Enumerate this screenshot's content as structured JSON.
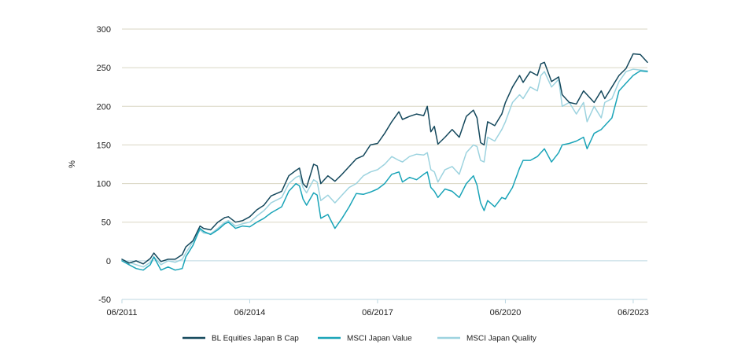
{
  "chart_data": {
    "type": "line",
    "ylabel": "%",
    "xlabel": "",
    "title": "",
    "ylim": [
      -50,
      300
    ],
    "yticks": [
      -50,
      0,
      50,
      100,
      150,
      200,
      250,
      300
    ],
    "x_range": [
      "2011-06",
      "2023-10"
    ],
    "xticks": [
      {
        "date": "2011-06",
        "label": "06/2011"
      },
      {
        "date": "2014-06",
        "label": "06/2014"
      },
      {
        "date": "2017-06",
        "label": "06/2017"
      },
      {
        "date": "2020-06",
        "label": "06/2020"
      },
      {
        "date": "2023-06",
        "label": "06/2023"
      }
    ],
    "grid": true,
    "legend_position": "bottom",
    "series": [
      {
        "name": "BL Equities Japan B Cap",
        "color": "#14485c",
        "points": [
          [
            "2011-06",
            2
          ],
          [
            "2011-08",
            -3
          ],
          [
            "2011-10",
            0
          ],
          [
            "2011-12",
            -4
          ],
          [
            "2012-02",
            3
          ],
          [
            "2012-03",
            10
          ],
          [
            "2012-05",
            -1
          ],
          [
            "2012-07",
            2
          ],
          [
            "2012-09",
            2
          ],
          [
            "2012-11",
            8
          ],
          [
            "2012-12",
            18
          ],
          [
            "2013-02",
            26
          ],
          [
            "2013-04",
            45
          ],
          [
            "2013-05",
            42
          ],
          [
            "2013-07",
            40
          ],
          [
            "2013-09",
            50
          ],
          [
            "2013-11",
            56
          ],
          [
            "2013-12",
            57
          ],
          [
            "2014-02",
            50
          ],
          [
            "2014-04",
            52
          ],
          [
            "2014-06",
            57
          ],
          [
            "2014-08",
            66
          ],
          [
            "2014-10",
            72
          ],
          [
            "2014-12",
            84
          ],
          [
            "2015-03",
            90
          ],
          [
            "2015-05",
            110
          ],
          [
            "2015-07",
            117
          ],
          [
            "2015-08",
            120
          ],
          [
            "2015-09",
            100
          ],
          [
            "2015-10",
            95
          ],
          [
            "2015-12",
            125
          ],
          [
            "2016-01",
            123
          ],
          [
            "2016-02",
            100
          ],
          [
            "2016-04",
            110
          ],
          [
            "2016-06",
            103
          ],
          [
            "2016-08",
            112
          ],
          [
            "2016-10",
            122
          ],
          [
            "2016-12",
            132
          ],
          [
            "2017-02",
            136
          ],
          [
            "2017-04",
            150
          ],
          [
            "2017-06",
            152
          ],
          [
            "2017-08",
            165
          ],
          [
            "2017-10",
            180
          ],
          [
            "2017-12",
            193
          ],
          [
            "2018-01",
            183
          ],
          [
            "2018-03",
            187
          ],
          [
            "2018-05",
            190
          ],
          [
            "2018-07",
            188
          ],
          [
            "2018-08",
            200
          ],
          [
            "2018-09",
            167
          ],
          [
            "2018-10",
            174
          ],
          [
            "2018-11",
            151
          ],
          [
            "2019-01",
            160
          ],
          [
            "2019-03",
            170
          ],
          [
            "2019-05",
            160
          ],
          [
            "2019-07",
            187
          ],
          [
            "2019-09",
            195
          ],
          [
            "2019-10",
            185
          ],
          [
            "2019-11",
            153
          ],
          [
            "2019-12",
            150
          ],
          [
            "2020-01",
            180
          ],
          [
            "2020-03",
            175
          ],
          [
            "2020-05",
            190
          ],
          [
            "2020-06",
            205
          ],
          [
            "2020-08",
            225
          ],
          [
            "2020-10",
            240
          ],
          [
            "2020-11",
            231
          ],
          [
            "2021-01",
            245
          ],
          [
            "2021-03",
            240
          ],
          [
            "2021-04",
            255
          ],
          [
            "2021-05",
            257
          ],
          [
            "2021-07",
            232
          ],
          [
            "2021-09",
            238
          ],
          [
            "2021-10",
            215
          ],
          [
            "2021-12",
            205
          ],
          [
            "2022-02",
            203
          ],
          [
            "2022-04",
            220
          ],
          [
            "2022-05",
            215
          ],
          [
            "2022-07",
            205
          ],
          [
            "2022-09",
            220
          ],
          [
            "2022-10",
            210
          ],
          [
            "2022-12",
            225
          ],
          [
            "2023-02",
            240
          ],
          [
            "2023-04",
            249
          ],
          [
            "2023-06",
            268
          ],
          [
            "2023-08",
            267
          ],
          [
            "2023-10",
            257
          ]
        ]
      },
      {
        "name": "MSCI Japan Value",
        "color": "#1aa4b8",
        "points": [
          [
            "2011-06",
            0
          ],
          [
            "2011-08",
            -5
          ],
          [
            "2011-10",
            -10
          ],
          [
            "2011-12",
            -12
          ],
          [
            "2012-02",
            -5
          ],
          [
            "2012-03",
            5
          ],
          [
            "2012-05",
            -12
          ],
          [
            "2012-07",
            -8
          ],
          [
            "2012-09",
            -12
          ],
          [
            "2012-11",
            -10
          ],
          [
            "2012-12",
            5
          ],
          [
            "2013-02",
            20
          ],
          [
            "2013-04",
            42
          ],
          [
            "2013-05",
            38
          ],
          [
            "2013-07",
            34
          ],
          [
            "2013-09",
            40
          ],
          [
            "2013-11",
            48
          ],
          [
            "2013-12",
            50
          ],
          [
            "2014-02",
            42
          ],
          [
            "2014-04",
            45
          ],
          [
            "2014-06",
            44
          ],
          [
            "2014-08",
            50
          ],
          [
            "2014-10",
            55
          ],
          [
            "2014-12",
            62
          ],
          [
            "2015-03",
            70
          ],
          [
            "2015-05",
            90
          ],
          [
            "2015-07",
            100
          ],
          [
            "2015-08",
            97
          ],
          [
            "2015-09",
            80
          ],
          [
            "2015-10",
            72
          ],
          [
            "2015-12",
            88
          ],
          [
            "2016-01",
            85
          ],
          [
            "2016-02",
            55
          ],
          [
            "2016-04",
            60
          ],
          [
            "2016-06",
            42
          ],
          [
            "2016-08",
            55
          ],
          [
            "2016-10",
            70
          ],
          [
            "2016-12",
            87
          ],
          [
            "2017-02",
            86
          ],
          [
            "2017-04",
            89
          ],
          [
            "2017-06",
            93
          ],
          [
            "2017-08",
            100
          ],
          [
            "2017-10",
            112
          ],
          [
            "2017-12",
            115
          ],
          [
            "2018-01",
            102
          ],
          [
            "2018-03",
            108
          ],
          [
            "2018-05",
            105
          ],
          [
            "2018-07",
            112
          ],
          [
            "2018-08",
            115
          ],
          [
            "2018-09",
            95
          ],
          [
            "2018-10",
            90
          ],
          [
            "2018-11",
            82
          ],
          [
            "2019-01",
            93
          ],
          [
            "2019-03",
            90
          ],
          [
            "2019-05",
            82
          ],
          [
            "2019-07",
            100
          ],
          [
            "2019-09",
            110
          ],
          [
            "2019-10",
            98
          ],
          [
            "2019-11",
            75
          ],
          [
            "2019-12",
            65
          ],
          [
            "2020-01",
            78
          ],
          [
            "2020-03",
            70
          ],
          [
            "2020-05",
            82
          ],
          [
            "2020-06",
            80
          ],
          [
            "2020-08",
            95
          ],
          [
            "2020-10",
            120
          ],
          [
            "2020-11",
            130
          ],
          [
            "2021-01",
            130
          ],
          [
            "2021-03",
            135
          ],
          [
            "2021-04",
            140
          ],
          [
            "2021-05",
            145
          ],
          [
            "2021-07",
            128
          ],
          [
            "2021-09",
            140
          ],
          [
            "2021-10",
            150
          ],
          [
            "2021-12",
            152
          ],
          [
            "2022-02",
            155
          ],
          [
            "2022-04",
            160
          ],
          [
            "2022-05",
            145
          ],
          [
            "2022-07",
            165
          ],
          [
            "2022-09",
            170
          ],
          [
            "2022-10",
            175
          ],
          [
            "2022-12",
            185
          ],
          [
            "2023-02",
            220
          ],
          [
            "2023-04",
            230
          ],
          [
            "2023-06",
            240
          ],
          [
            "2023-08",
            246
          ],
          [
            "2023-10",
            245
          ]
        ]
      },
      {
        "name": "MSCI Japan Quality",
        "color": "#9dd3df",
        "points": [
          [
            "2011-06",
            2
          ],
          [
            "2011-08",
            -2
          ],
          [
            "2011-10",
            -5
          ],
          [
            "2011-12",
            -8
          ],
          [
            "2012-02",
            -2
          ],
          [
            "2012-03",
            5
          ],
          [
            "2012-05",
            -5
          ],
          [
            "2012-07",
            0
          ],
          [
            "2012-09",
            -2
          ],
          [
            "2012-11",
            2
          ],
          [
            "2012-12",
            10
          ],
          [
            "2013-02",
            25
          ],
          [
            "2013-04",
            40
          ],
          [
            "2013-05",
            36
          ],
          [
            "2013-07",
            35
          ],
          [
            "2013-09",
            42
          ],
          [
            "2013-11",
            50
          ],
          [
            "2013-12",
            52
          ],
          [
            "2014-02",
            45
          ],
          [
            "2014-04",
            48
          ],
          [
            "2014-06",
            50
          ],
          [
            "2014-08",
            58
          ],
          [
            "2014-10",
            65
          ],
          [
            "2014-12",
            75
          ],
          [
            "2015-03",
            82
          ],
          [
            "2015-05",
            100
          ],
          [
            "2015-07",
            108
          ],
          [
            "2015-08",
            110
          ],
          [
            "2015-09",
            95
          ],
          [
            "2015-10",
            88
          ],
          [
            "2015-12",
            105
          ],
          [
            "2016-01",
            102
          ],
          [
            "2016-02",
            78
          ],
          [
            "2016-04",
            85
          ],
          [
            "2016-06",
            75
          ],
          [
            "2016-08",
            85
          ],
          [
            "2016-10",
            95
          ],
          [
            "2016-12",
            100
          ],
          [
            "2017-02",
            110
          ],
          [
            "2017-04",
            115
          ],
          [
            "2017-06",
            118
          ],
          [
            "2017-08",
            125
          ],
          [
            "2017-10",
            135
          ],
          [
            "2017-12",
            130
          ],
          [
            "2018-01",
            128
          ],
          [
            "2018-03",
            135
          ],
          [
            "2018-05",
            138
          ],
          [
            "2018-07",
            137
          ],
          [
            "2018-08",
            140
          ],
          [
            "2018-09",
            118
          ],
          [
            "2018-10",
            115
          ],
          [
            "2018-11",
            102
          ],
          [
            "2019-01",
            118
          ],
          [
            "2019-03",
            122
          ],
          [
            "2019-05",
            112
          ],
          [
            "2019-07",
            140
          ],
          [
            "2019-09",
            150
          ],
          [
            "2019-10",
            148
          ],
          [
            "2019-11",
            130
          ],
          [
            "2019-12",
            128
          ],
          [
            "2020-01",
            160
          ],
          [
            "2020-03",
            155
          ],
          [
            "2020-05",
            170
          ],
          [
            "2020-06",
            180
          ],
          [
            "2020-08",
            205
          ],
          [
            "2020-10",
            215
          ],
          [
            "2020-11",
            210
          ],
          [
            "2021-01",
            225
          ],
          [
            "2021-03",
            220
          ],
          [
            "2021-04",
            240
          ],
          [
            "2021-05",
            245
          ],
          [
            "2021-07",
            225
          ],
          [
            "2021-09",
            235
          ],
          [
            "2021-10",
            200
          ],
          [
            "2021-12",
            205
          ],
          [
            "2022-02",
            190
          ],
          [
            "2022-04",
            205
          ],
          [
            "2022-05",
            180
          ],
          [
            "2022-07",
            200
          ],
          [
            "2022-09",
            185
          ],
          [
            "2022-10",
            205
          ],
          [
            "2022-12",
            210
          ],
          [
            "2023-02",
            232
          ],
          [
            "2023-04",
            245
          ],
          [
            "2023-06",
            248
          ],
          [
            "2023-08",
            247
          ],
          [
            "2023-10",
            246
          ]
        ]
      }
    ]
  }
}
